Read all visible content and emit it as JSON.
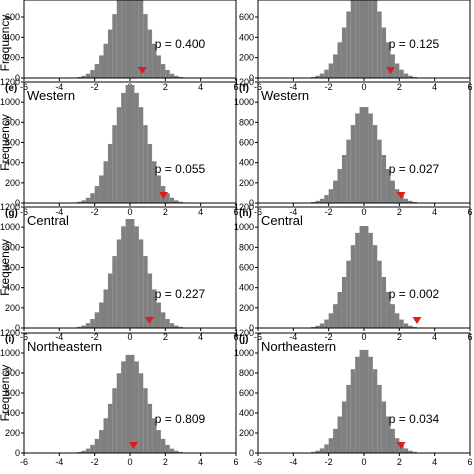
{
  "chart_data": [
    {
      "panel": "",
      "region": "",
      "p_text": "p = 0.400",
      "ylabel": "Frequency",
      "observed": 0.7,
      "sd": 0.95,
      "peak": 960,
      "ylim": [
        0,
        1200
      ],
      "yticks": [
        0,
        200,
        400,
        600,
        800,
        1000
      ],
      "xlim": [
        -6,
        6
      ],
      "xticks": [
        -6,
        -4,
        -2,
        0,
        2,
        4,
        6
      ]
    },
    {
      "panel": "",
      "region": "",
      "p_text": "p = 0.125",
      "ylabel": "",
      "observed": 1.5,
      "sd": 0.95,
      "peak": 1000,
      "ylim": [
        0,
        1200
      ],
      "yticks": [
        0,
        200,
        400,
        600,
        800,
        1000
      ],
      "xlim": [
        -6,
        6
      ],
      "xticks": [
        -6,
        -4,
        -2,
        0,
        2,
        4,
        6
      ]
    },
    {
      "panel": "(e)",
      "region": "Western",
      "p_text": "p = 0.055",
      "ylabel": "Frequency",
      "observed": 1.9,
      "sd": 0.95,
      "peak": 1180,
      "ylim": [
        0,
        1200
      ],
      "yticks": [
        0,
        200,
        400,
        600,
        800,
        1000,
        1200
      ],
      "xlim": [
        -6,
        6
      ],
      "xticks": [
        -6,
        -4,
        -2,
        0,
        2,
        4,
        6
      ]
    },
    {
      "panel": "(f)",
      "region": "Western",
      "p_text": "p = 0.027",
      "ylabel": "",
      "observed": 2.1,
      "sd": 0.95,
      "peak": 960,
      "ylim": [
        0,
        1200
      ],
      "yticks": [
        0,
        200,
        400,
        600,
        800,
        1000,
        1200
      ],
      "xlim": [
        -6,
        6
      ],
      "xticks": [
        -6,
        -4,
        -2,
        0,
        2,
        4,
        6
      ]
    },
    {
      "panel": "(g)",
      "region": "Central",
      "p_text": "p = 0.227",
      "ylabel": "Frequency",
      "observed": 1.1,
      "sd": 0.95,
      "peak": 1090,
      "ylim": [
        0,
        1200
      ],
      "yticks": [
        0,
        200,
        400,
        600,
        800,
        1000,
        1200
      ],
      "xlim": [
        -6,
        6
      ],
      "xticks": [
        -6,
        -4,
        -2,
        0,
        2,
        4,
        6
      ]
    },
    {
      "panel": "(h)",
      "region": "Central",
      "p_text": "p = 0.002",
      "ylabel": "",
      "observed": 3.0,
      "sd": 0.95,
      "peak": 1020,
      "ylim": [
        0,
        1200
      ],
      "yticks": [
        0,
        200,
        400,
        600,
        800,
        1000,
        1200
      ],
      "xlim": [
        -6,
        6
      ],
      "xticks": [
        -6,
        -4,
        -2,
        0,
        2,
        4,
        6
      ]
    },
    {
      "panel": "(i)",
      "region": "Northeastern",
      "p_text": "p = 0.809",
      "ylabel": "Frequency",
      "observed": 0.2,
      "sd": 0.95,
      "peak": 990,
      "ylim": [
        0,
        1200
      ],
      "yticks": [
        0,
        200,
        400,
        600,
        800,
        1000,
        1200
      ],
      "xlim": [
        -6,
        6
      ],
      "xticks": [
        -6,
        -4,
        -2,
        0,
        2,
        4,
        6
      ]
    },
    {
      "panel": "(j)",
      "region": "Northeastern",
      "p_text": "p = 0.034",
      "ylabel": "",
      "observed": 2.1,
      "sd": 0.95,
      "peak": 1040,
      "ylim": [
        0,
        1200
      ],
      "yticks": [
        0,
        200,
        400,
        600,
        800,
        1000,
        1200
      ],
      "xlim": [
        -6,
        6
      ],
      "xticks": [
        -6,
        -4,
        -2,
        0,
        2,
        4,
        6
      ]
    }
  ],
  "colors": {
    "bars": "#808080",
    "marker": "#e31a1c",
    "frame": "#000000"
  }
}
